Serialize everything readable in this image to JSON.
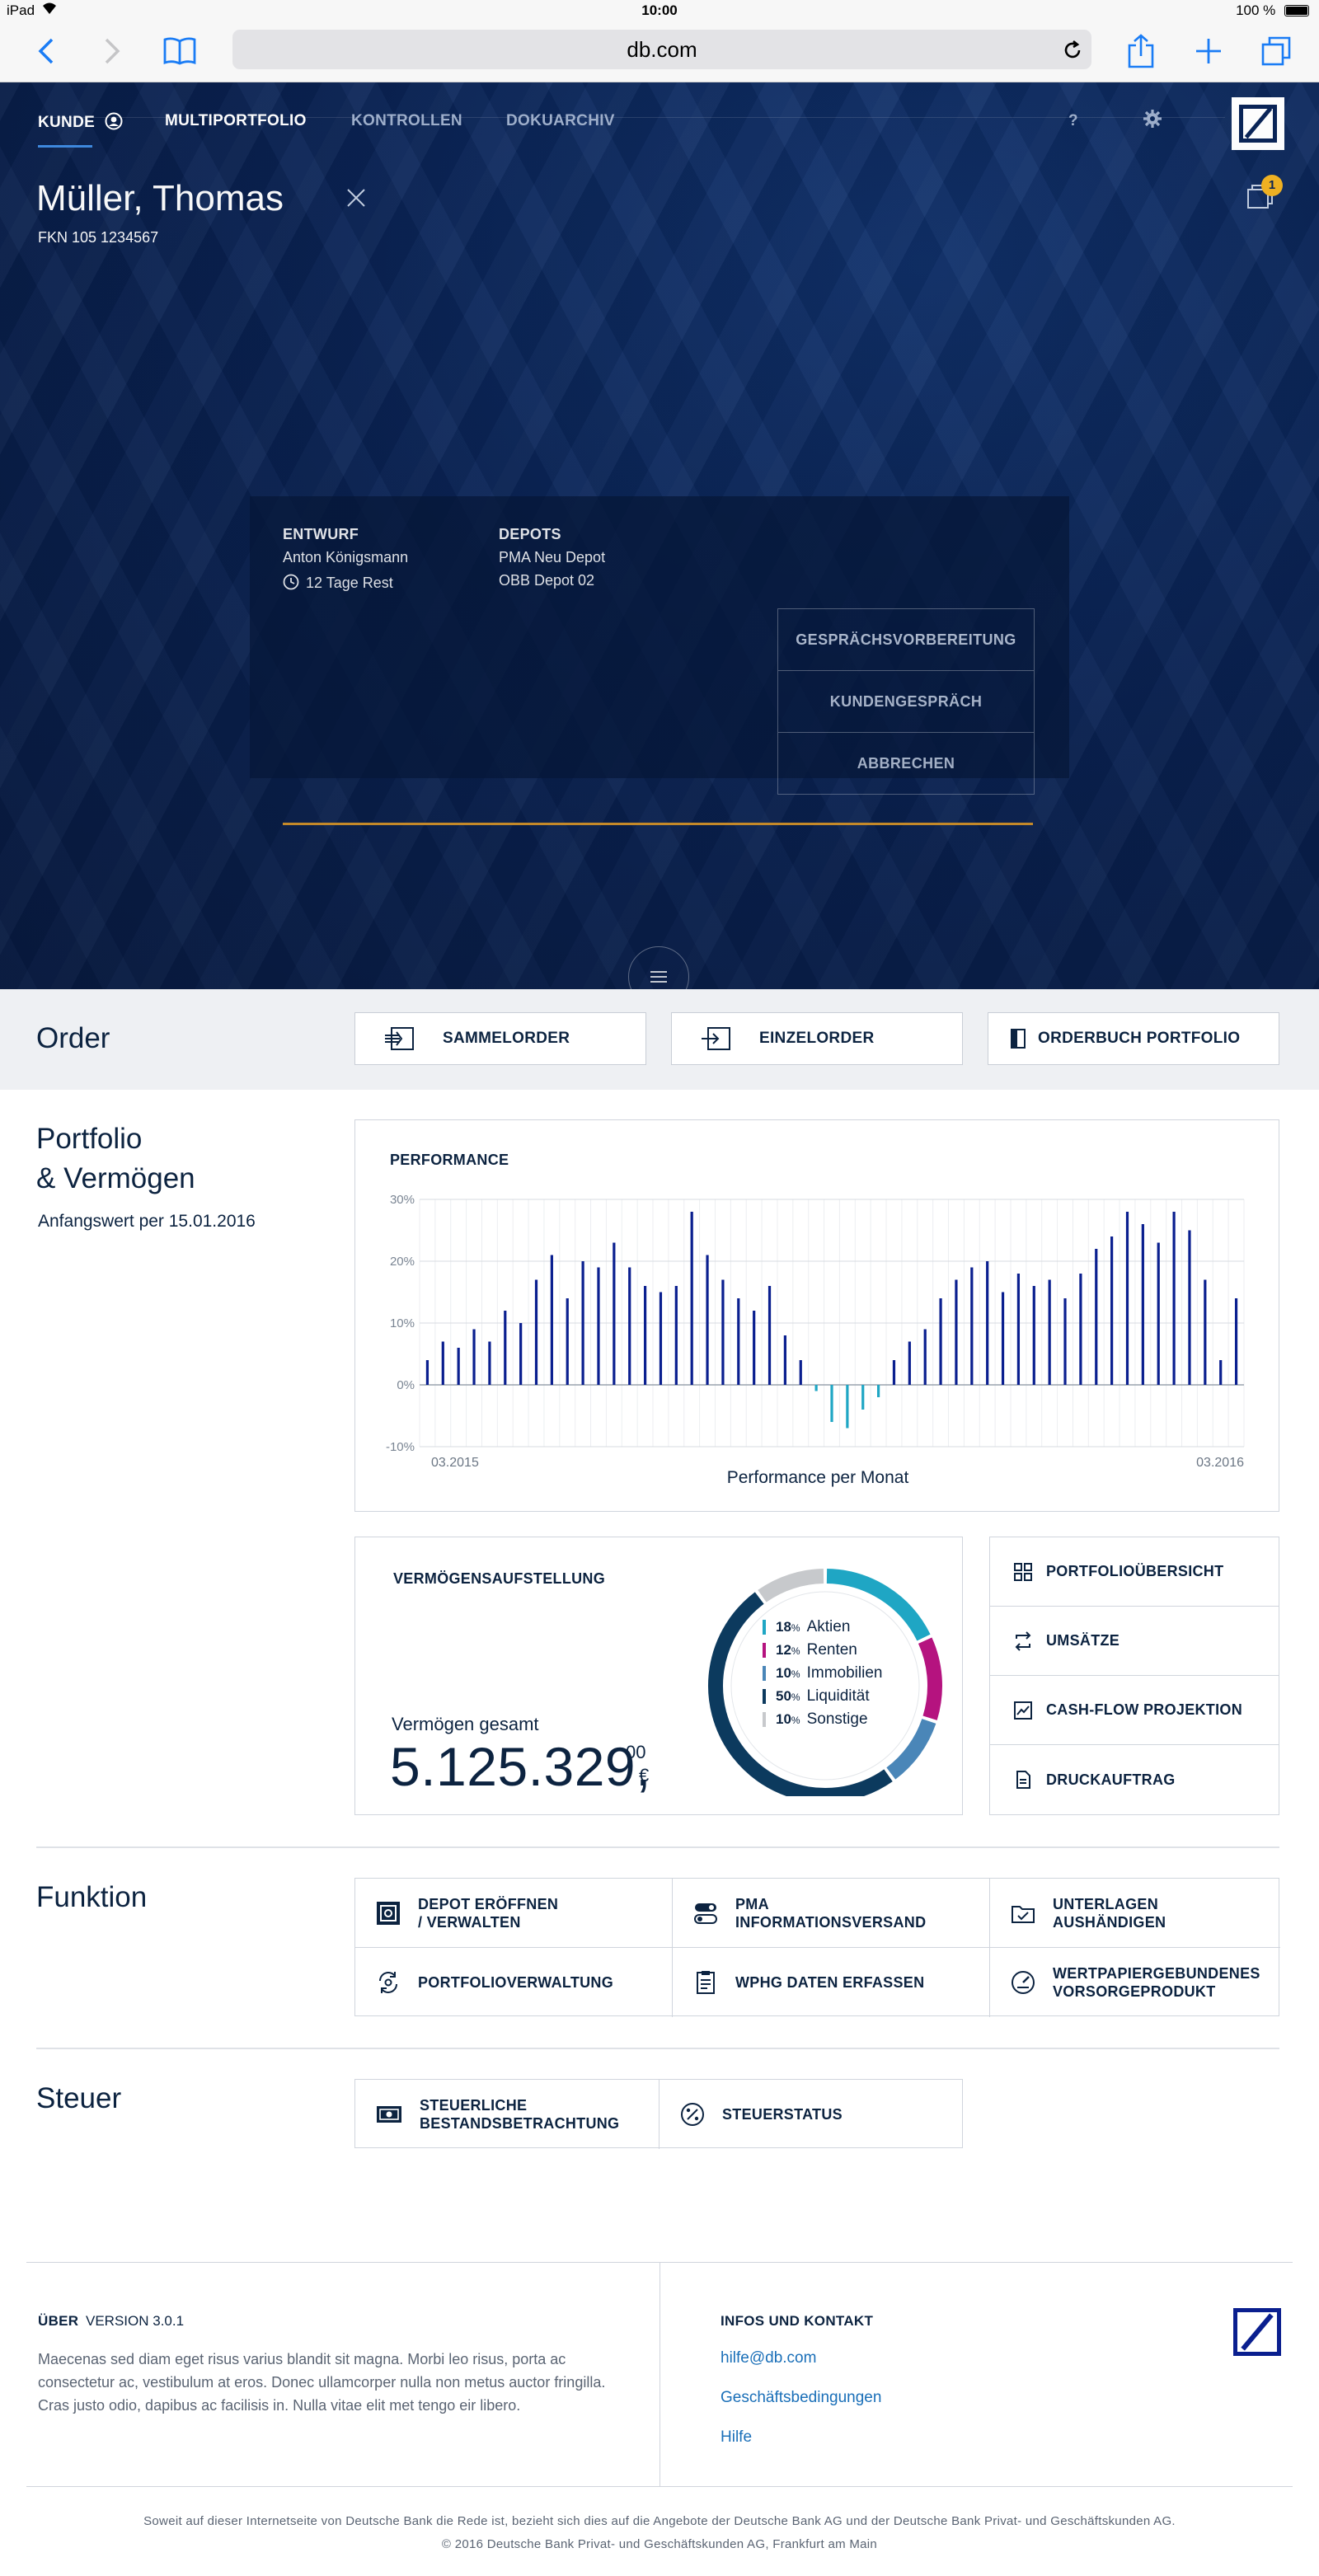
{
  "status_bar": {
    "device": "iPad",
    "time": "10:00",
    "battery": "100 %"
  },
  "browser": {
    "url": "db.com"
  },
  "nav": {
    "items": [
      {
        "label": "KUNDE"
      },
      {
        "label": "MULTIPORTFOLIO"
      },
      {
        "label": "KONTROLLEN"
      },
      {
        "label": "DOKUARCHIV"
      }
    ],
    "help": "?"
  },
  "customer": {
    "name": "Müller, Thomas",
    "fkn": "FKN 105 1234567",
    "notifications": "1"
  },
  "draft": {
    "draft_label": "ENTWURF",
    "draft_owner": "Anton Königsmann",
    "draft_rest": "12 Tage Rest",
    "depots_label": "DEPOTS",
    "depots": [
      "PMA Neu Depot",
      "OBB Depot 02"
    ],
    "actions": [
      "GESPRÄCHSVORBEREITUNG",
      "KUNDENGESPRÄCH",
      "ABBRECHEN"
    ]
  },
  "order": {
    "title": "Order",
    "buttons": [
      "SAMMELORDER",
      "EINZELORDER",
      "ORDERBUCH PORTFOLIO"
    ]
  },
  "portfolio": {
    "title_line1": "Portfolio",
    "title_line2": "& Vermögen",
    "subtitle": "Anfangswert per 15.01.2016"
  },
  "performance": {
    "title": "PERFORMANCE",
    "xlabel": "Performance per Monat",
    "x_start": "03.2015",
    "x_end": "03.2016",
    "y_ticks": [
      "30%",
      "20%",
      "10%",
      "0%",
      "-10%"
    ]
  },
  "chart_data": {
    "type": "bar",
    "title": "PERFORMANCE",
    "xlabel": "Performance per Monat",
    "ylabel": "",
    "x_start": "03.2015",
    "x_end": "03.2016",
    "ylim": [
      -10,
      30
    ],
    "y_ticks": [
      -10,
      0,
      10,
      20,
      30
    ],
    "grid": true,
    "values": [
      4,
      7,
      6,
      9,
      7,
      12,
      10,
      17,
      21,
      14,
      20,
      19,
      23,
      19,
      16,
      15,
      16,
      28,
      21,
      17,
      14,
      12,
      16,
      8,
      4,
      -1,
      -6,
      -7,
      -4,
      -2,
      4,
      7,
      9,
      14,
      17,
      19,
      20,
      15,
      18,
      16,
      17,
      14,
      18,
      22,
      24,
      28,
      26,
      23,
      28,
      25,
      17,
      4,
      14
    ],
    "negative_color": "#1fa6c4",
    "positive_color": "#0a1f8f"
  },
  "wealth": {
    "title": "VERMÖGENSAUFSTELLUNG",
    "total_label": "Vermögen gesamt",
    "total_value": "5.125.329,",
    "total_cents": "00",
    "currency": "€",
    "allocation": [
      {
        "pct_num": "18",
        "pct_sym": "%",
        "name": "Aktien",
        "color": "#1fa6c4"
      },
      {
        "pct_num": "12",
        "pct_sym": "%",
        "name": "Renten",
        "color": "#b5137f"
      },
      {
        "pct_num": "10",
        "pct_sym": "%",
        "name": "Immobilien",
        "color": "#4a86b8"
      },
      {
        "pct_num": "50",
        "pct_sym": "%",
        "name": "Liquidität",
        "color": "#0c3a5e"
      },
      {
        "pct_num": "10",
        "pct_sym": "%",
        "name": "Sonstige",
        "color": "#c7c9cc"
      }
    ]
  },
  "side_actions": [
    "PORTFOLIOÜBERSICHT",
    "UMSÄTZE",
    "CASH-FLOW PROJEKTION",
    "DRUCKAUFTRAG"
  ],
  "funktion": {
    "title": "Funktion",
    "tiles": [
      "DEPOT ERÖFFNEN\n/ VERWALTEN",
      "PMA\nINFORMATIONSVERSAND",
      "UNTERLAGEN\nAUSHÄNDIGEN",
      "PORTFOLIOVERWALTUNG",
      "WPHG DATEN ERFASSEN",
      "WERTPAPIERGEBUNDENES\nVORSORGEPRODUKT"
    ]
  },
  "steuer": {
    "title": "Steuer",
    "tiles": [
      "STEUERLICHE\nBESTANDSBETRACHTUNG",
      "STEUERSTATUS"
    ]
  },
  "footer": {
    "about_title": "ÜBER",
    "version": "VERSION 3.0.1",
    "about_text": "Maecenas sed diam eget risus varius blandit sit magna. Morbi leo risus, porta ac consectetur ac, vestibulum at eros. Donec ullamcorper nulla non metus auctor fringilla. Cras justo odio, dapibus ac facilisis in. Nulla vitae elit met tengo eir libero.",
    "contact_title": "INFOS UND KONTAKT",
    "links": [
      "hilfe@db.com",
      "Geschäftsbedingungen",
      "Hilfe"
    ],
    "legal_line1": "Soweit auf dieser Internetseite von Deutsche Bank die Rede ist, bezieht sich dies auf die Angebote der Deutsche Bank AG und der Deutsche Bank Privat- und Geschäftskunden AG.",
    "legal_line2": "© 2016 Deutsche Bank Privat- und Geschäftskunden AG, Frankfurt am Main"
  }
}
